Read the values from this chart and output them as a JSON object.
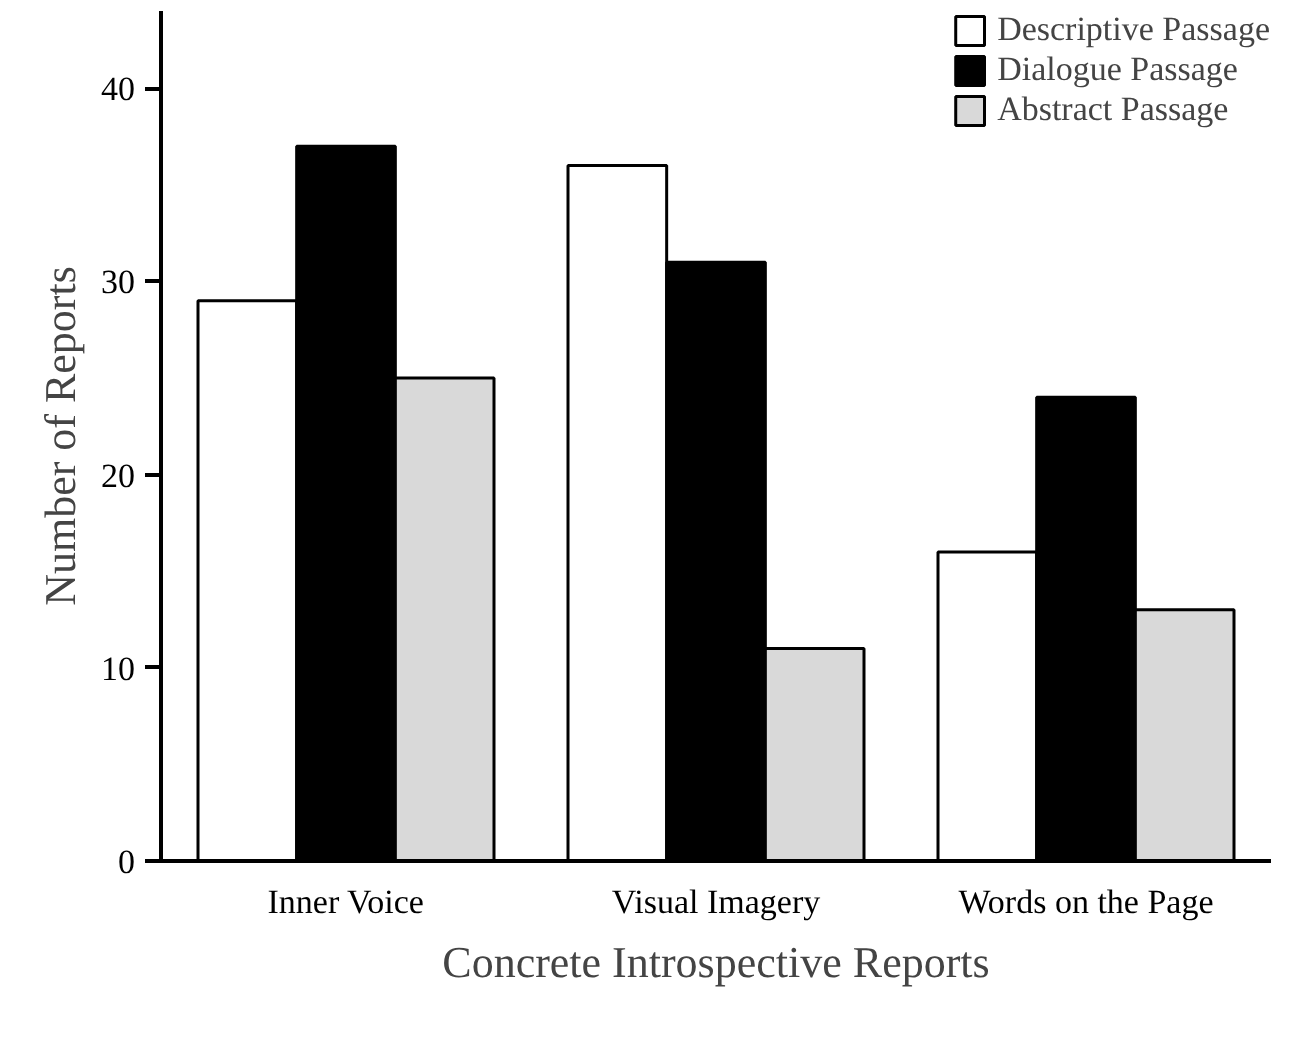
{
  "chart_data": {
    "type": "bar",
    "xlabel": "Concrete Introspective Reports",
    "ylabel": "Number of Reports",
    "categories": [
      "Inner Voice",
      "Visual Imagery",
      "Words on the Page"
    ],
    "series": [
      {
        "name": "Descriptive Passage",
        "color": "#ffffff",
        "values": [
          29,
          36,
          16
        ]
      },
      {
        "name": "Dialogue Passage",
        "color": "#000000",
        "values": [
          37,
          31,
          24
        ]
      },
      {
        "name": "Abstract Passage",
        "color": "#d9d9d9",
        "values": [
          25,
          11,
          13
        ]
      }
    ],
    "ylim": [
      0,
      44
    ],
    "yticks": [
      0,
      10,
      20,
      30,
      40
    ],
    "grid": false,
    "legend": "top right"
  }
}
